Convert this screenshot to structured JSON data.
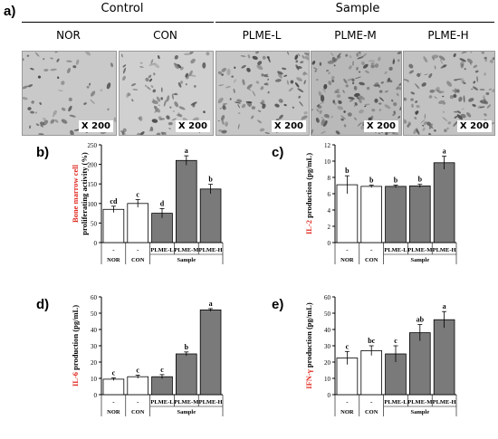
{
  "panel_a": {
    "letter": "a)",
    "groups": [
      {
        "label": "Control"
      },
      {
        "label": "Sample"
      }
    ],
    "images": [
      {
        "label": "NOR",
        "mag": "X 200",
        "tone": "#c9c9c9"
      },
      {
        "label": "CON",
        "mag": "X 200",
        "tone": "#d0d0d0"
      },
      {
        "label": "PLME-L",
        "mag": "X 200",
        "tone": "#c6c6c6"
      },
      {
        "label": "PLME-M",
        "mag": "X 200",
        "tone": "#b9b9b9"
      },
      {
        "label": "PLME-H",
        "mag": "X 200",
        "tone": "#c2c2c2"
      }
    ]
  },
  "colors": {
    "control_bar": "#ffffff",
    "sample_bar": "#7a7a7a",
    "ylabel_red": "#e0281e"
  },
  "chart_data": [
    {
      "type": "bar",
      "panel": "b)",
      "categories": [
        "NOR",
        "CON",
        "PLME-L",
        "PLME-M",
        "PLME-H"
      ],
      "values": [
        85,
        100,
        75,
        210,
        137
      ],
      "errors": [
        8,
        10,
        12,
        12,
        12
      ],
      "letters": [
        "cd",
        "c",
        "d",
        "a",
        "b"
      ],
      "ylim": [
        0,
        250
      ],
      "yticks": [
        0,
        50,
        100,
        150,
        200,
        250
      ],
      "ylabel_red": "Bone marrow cell",
      "ylabel_black": "proliferating activity (%)",
      "dash": "-",
      "sample_label": "Sample"
    },
    {
      "type": "bar",
      "panel": "c)",
      "categories": [
        "NOR",
        "CON",
        "PLME-L",
        "PLME-M",
        "PLME-H"
      ],
      "values": [
        7.1,
        6.9,
        6.9,
        6.95,
        9.8
      ],
      "errors": [
        1.1,
        0.15,
        0.15,
        0.2,
        0.8
      ],
      "letters": [
        "b",
        "b",
        "b",
        "b",
        "a"
      ],
      "ylim": [
        0,
        12
      ],
      "yticks": [
        0,
        2,
        4,
        6,
        8,
        10,
        12
      ],
      "ylabel_red": "IL-2",
      "ylabel_black": " production (pg/mL)",
      "dash": "-",
      "sample_label": "Sample"
    },
    {
      "type": "bar",
      "panel": "d)",
      "categories": [
        "NOR",
        "CON",
        "PLME-L",
        "PLME-M",
        "PLME-H"
      ],
      "values": [
        9.5,
        11,
        11,
        25,
        52
      ],
      "errors": [
        0.8,
        1,
        1.3,
        1.2,
        0.8
      ],
      "letters": [
        "c",
        "c",
        "c",
        "b",
        "a"
      ],
      "ylim": [
        0,
        60
      ],
      "yticks": [
        0,
        10,
        20,
        30,
        40,
        50,
        60
      ],
      "ylabel_red": "IL-6",
      "ylabel_black": " production (pg/mL)",
      "dash": "-",
      "sample_label": "Sample"
    },
    {
      "type": "bar",
      "panel": "e)",
      "categories": [
        "NOR",
        "CON",
        "PLME-L",
        "PLME-M",
        "PLME-H"
      ],
      "values": [
        22.5,
        27,
        25,
        38,
        46
      ],
      "errors": [
        4,
        3,
        5,
        5,
        5
      ],
      "letters": [
        "c",
        "bc",
        "c",
        "ab",
        "a"
      ],
      "ylim": [
        0,
        60
      ],
      "yticks": [
        0,
        10,
        20,
        30,
        40,
        50,
        60
      ],
      "ylabel_red": "IFN-γ",
      "ylabel_black": " production (pg/mL)",
      "dash": "-",
      "sample_label": "Sample"
    }
  ]
}
